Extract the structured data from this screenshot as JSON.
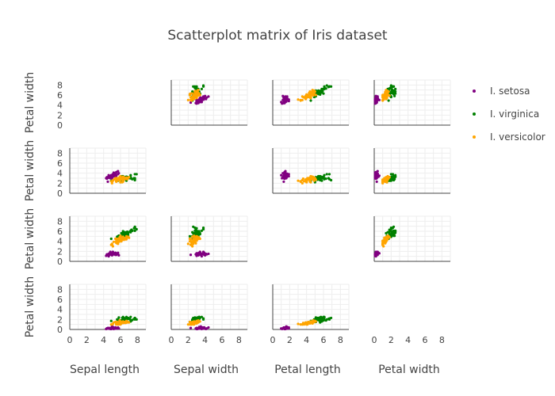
{
  "chart_data": {
    "type": "scatter",
    "title": "Scatterplot matrix of Iris dataset",
    "row_axis_labels": [
      "Petal width",
      "Petal width",
      "Petal width",
      "Petal width"
    ],
    "column_axis_labels": [
      "Sepal length",
      "Sepal width",
      "Petal length",
      "Petal width"
    ],
    "x_range": [
      0,
      9
    ],
    "y_range": [
      0,
      9
    ],
    "x_ticks": [
      0,
      2,
      4,
      6,
      8
    ],
    "y_ticks": [
      0,
      2,
      4,
      6,
      8
    ],
    "grid": true,
    "legend_position": "right",
    "series": [
      {
        "name": "I. setosa",
        "color": "#800080",
        "sepal_length": [
          5.1,
          4.9,
          4.7,
          4.6,
          5.0,
          5.4,
          4.6,
          5.0,
          4.4,
          4.9,
          5.4,
          4.8,
          4.8,
          4.3,
          5.8,
          5.7,
          5.4,
          5.1,
          5.7,
          5.1,
          5.4,
          5.1,
          4.6,
          5.1,
          4.8,
          5.0,
          5.0,
          5.2,
          5.2,
          4.7,
          4.8,
          5.4,
          5.2,
          5.5,
          4.9,
          5.0,
          5.5,
          4.9,
          4.4,
          5.1,
          5.0,
          4.5,
          4.4,
          5.0,
          5.1,
          4.8,
          5.1,
          4.6,
          5.3,
          5.0
        ],
        "sepal_width": [
          3.5,
          3.0,
          3.2,
          3.1,
          3.6,
          3.9,
          3.4,
          3.4,
          2.9,
          3.1,
          3.7,
          3.4,
          3.0,
          3.0,
          4.0,
          4.4,
          3.9,
          3.5,
          3.8,
          3.8,
          3.4,
          3.7,
          3.6,
          3.3,
          3.4,
          3.0,
          3.4,
          3.5,
          3.4,
          3.2,
          3.1,
          3.4,
          4.1,
          4.2,
          3.1,
          3.2,
          3.5,
          3.6,
          3.0,
          3.4,
          3.5,
          2.3,
          3.2,
          3.5,
          3.8,
          3.0,
          3.8,
          3.2,
          3.7,
          3.3
        ],
        "petal_length": [
          1.4,
          1.4,
          1.3,
          1.5,
          1.4,
          1.7,
          1.4,
          1.5,
          1.4,
          1.5,
          1.5,
          1.6,
          1.4,
          1.1,
          1.2,
          1.5,
          1.3,
          1.4,
          1.7,
          1.5,
          1.7,
          1.5,
          1.0,
          1.7,
          1.9,
          1.6,
          1.6,
          1.5,
          1.4,
          1.6,
          1.6,
          1.5,
          1.5,
          1.4,
          1.5,
          1.2,
          1.3,
          1.4,
          1.3,
          1.5,
          1.3,
          1.3,
          1.3,
          1.6,
          1.9,
          1.4,
          1.6,
          1.4,
          1.5,
          1.4
        ],
        "petal_width": [
          0.2,
          0.2,
          0.2,
          0.2,
          0.2,
          0.4,
          0.3,
          0.2,
          0.2,
          0.1,
          0.2,
          0.2,
          0.1,
          0.1,
          0.2,
          0.4,
          0.4,
          0.3,
          0.3,
          0.3,
          0.2,
          0.4,
          0.2,
          0.5,
          0.2,
          0.2,
          0.4,
          0.2,
          0.2,
          0.2,
          0.2,
          0.4,
          0.1,
          0.2,
          0.2,
          0.2,
          0.2,
          0.1,
          0.2,
          0.2,
          0.3,
          0.3,
          0.2,
          0.6,
          0.4,
          0.3,
          0.2,
          0.2,
          0.2,
          0.2
        ]
      },
      {
        "name": "I. virginica",
        "color": "#008000",
        "sepal_length": [
          6.3,
          5.8,
          7.1,
          6.3,
          6.5,
          7.6,
          4.9,
          7.3,
          6.7,
          7.2,
          6.5,
          6.4,
          6.8,
          5.7,
          5.8,
          6.4,
          6.5,
          7.7,
          7.7,
          6.0,
          6.9,
          5.6,
          7.7,
          6.3,
          6.7,
          7.2,
          6.2,
          6.1,
          6.4,
          7.2,
          7.4,
          7.9,
          6.4,
          6.3,
          6.1,
          7.7,
          6.3,
          6.4,
          6.0,
          6.9,
          6.7,
          6.9,
          5.8,
          6.8,
          6.7,
          6.7,
          6.3,
          6.5,
          6.2,
          5.9
        ],
        "sepal_width": [
          3.3,
          2.7,
          3.0,
          2.9,
          3.0,
          3.0,
          2.5,
          2.9,
          2.5,
          3.6,
          3.2,
          2.7,
          3.0,
          2.5,
          2.8,
          3.2,
          3.0,
          3.8,
          2.6,
          2.2,
          3.2,
          2.8,
          2.8,
          2.7,
          3.3,
          3.2,
          2.8,
          3.0,
          2.8,
          3.0,
          2.8,
          3.8,
          2.8,
          2.8,
          2.6,
          3.0,
          3.4,
          3.1,
          3.0,
          3.1,
          3.1,
          3.1,
          2.7,
          3.2,
          3.3,
          3.0,
          2.5,
          3.0,
          3.4,
          3.0
        ],
        "petal_length": [
          6.0,
          5.1,
          5.9,
          5.6,
          5.8,
          6.6,
          4.5,
          6.3,
          5.8,
          6.1,
          5.1,
          5.3,
          5.5,
          5.0,
          5.1,
          5.3,
          5.5,
          6.7,
          6.9,
          5.0,
          5.7,
          4.9,
          6.7,
          4.9,
          5.7,
          6.0,
          4.8,
          4.9,
          5.6,
          5.8,
          6.1,
          6.4,
          5.6,
          5.1,
          5.6,
          6.1,
          5.6,
          5.5,
          4.8,
          5.4,
          5.6,
          5.1,
          5.1,
          5.9,
          5.7,
          5.2,
          5.0,
          5.2,
          5.4,
          5.1
        ],
        "petal_width": [
          2.5,
          1.9,
          2.1,
          1.8,
          2.2,
          2.1,
          1.7,
          1.8,
          1.8,
          2.5,
          2.0,
          1.9,
          2.1,
          2.0,
          2.4,
          2.3,
          1.8,
          2.2,
          2.3,
          1.5,
          2.3,
          2.0,
          2.0,
          1.8,
          2.1,
          1.8,
          1.8,
          1.8,
          2.1,
          1.6,
          1.9,
          2.0,
          2.2,
          1.5,
          1.4,
          2.3,
          2.4,
          1.8,
          1.8,
          2.1,
          2.4,
          2.3,
          1.9,
          2.3,
          2.5,
          2.3,
          1.9,
          2.0,
          2.3,
          1.8
        ]
      },
      {
        "name": "I. versicolor",
        "color": "#FFA500",
        "sepal_length": [
          7.0,
          6.4,
          6.9,
          5.5,
          6.5,
          5.7,
          6.3,
          4.9,
          6.6,
          5.2,
          5.0,
          5.9,
          6.0,
          6.1,
          5.6,
          6.7,
          5.6,
          5.8,
          6.2,
          5.6,
          5.9,
          6.1,
          6.3,
          6.1,
          6.4,
          6.6,
          6.8,
          6.7,
          6.0,
          5.7,
          5.5,
          5.5,
          5.8,
          6.0,
          5.4,
          6.0,
          6.7,
          6.3,
          5.6,
          5.5,
          5.5,
          6.1,
          5.8,
          5.0,
          5.6,
          5.7,
          5.7,
          6.2,
          5.1,
          5.7
        ],
        "sepal_width": [
          3.2,
          3.2,
          3.1,
          2.3,
          2.8,
          2.8,
          3.3,
          2.4,
          2.9,
          2.7,
          2.0,
          3.0,
          2.2,
          2.9,
          2.9,
          3.1,
          3.0,
          2.7,
          2.2,
          2.5,
          3.2,
          2.8,
          2.5,
          2.8,
          2.9,
          3.0,
          2.8,
          3.0,
          2.9,
          2.6,
          2.4,
          2.4,
          2.7,
          2.7,
          3.0,
          3.4,
          3.1,
          2.3,
          3.0,
          2.5,
          2.6,
          3.0,
          2.6,
          2.3,
          2.7,
          3.0,
          2.9,
          2.9,
          2.5,
          2.8
        ],
        "petal_length": [
          4.7,
          4.5,
          4.9,
          4.0,
          4.6,
          4.5,
          4.7,
          3.3,
          4.6,
          3.9,
          3.5,
          4.2,
          4.0,
          4.7,
          3.6,
          4.4,
          4.5,
          4.1,
          4.5,
          3.9,
          4.8,
          4.0,
          4.9,
          4.7,
          4.3,
          4.4,
          4.8,
          5.0,
          4.5,
          3.5,
          3.8,
          3.7,
          3.9,
          5.1,
          4.5,
          4.5,
          4.7,
          4.4,
          4.1,
          4.0,
          4.4,
          4.6,
          4.0,
          3.3,
          4.2,
          4.2,
          4.2,
          4.3,
          3.0,
          4.1
        ],
        "petal_width": [
          1.4,
          1.5,
          1.5,
          1.3,
          1.5,
          1.3,
          1.6,
          1.0,
          1.3,
          1.4,
          1.0,
          1.5,
          1.0,
          1.4,
          1.3,
          1.4,
          1.5,
          1.0,
          1.5,
          1.1,
          1.8,
          1.3,
          1.5,
          1.2,
          1.3,
          1.4,
          1.4,
          1.7,
          1.5,
          1.0,
          1.1,
          1.0,
          1.2,
          1.6,
          1.5,
          1.6,
          1.5,
          1.3,
          1.3,
          1.3,
          1.2,
          1.4,
          1.2,
          1.0,
          1.3,
          1.2,
          1.3,
          1.3,
          1.1,
          1.3
        ]
      }
    ]
  }
}
